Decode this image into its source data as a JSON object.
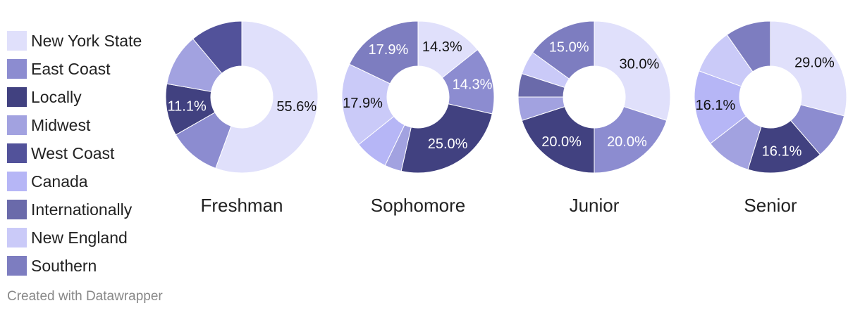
{
  "legend": {
    "items": [
      {
        "label": "New York State",
        "color": "#e0e0fb"
      },
      {
        "label": "East Coast",
        "color": "#8c8cd0"
      },
      {
        "label": "Locally",
        "color": "#414180"
      },
      {
        "label": "Midwest",
        "color": "#a2a2e0"
      },
      {
        "label": "West Coast",
        "color": "#52529a"
      },
      {
        "label": "Canada",
        "color": "#b6b6f6"
      },
      {
        "label": "Internationally",
        "color": "#6a6aaa"
      },
      {
        "label": "New England",
        "color": "#cacaf8"
      },
      {
        "label": "Southern",
        "color": "#7d7dc0"
      }
    ]
  },
  "chart_data": [
    {
      "type": "pie",
      "title": "Freshman",
      "slices": [
        {
          "category": "New York State",
          "value": 55.6,
          "label": "55.6%"
        },
        {
          "category": "East Coast",
          "value": 11.1,
          "label": ""
        },
        {
          "category": "Locally",
          "value": 11.1,
          "label": "11.1%"
        },
        {
          "category": "Midwest",
          "value": 11.1,
          "label": ""
        },
        {
          "category": "West Coast",
          "value": 11.1,
          "label": ""
        }
      ]
    },
    {
      "type": "pie",
      "title": "Sophomore",
      "slices": [
        {
          "category": "New York State",
          "value": 14.3,
          "label": "14.3%"
        },
        {
          "category": "East Coast",
          "value": 14.3,
          "label": "14.3%"
        },
        {
          "category": "Locally",
          "value": 25.0,
          "label": "25.0%"
        },
        {
          "category": "Midwest",
          "value": 3.6,
          "label": ""
        },
        {
          "category": "Canada",
          "value": 7.1,
          "label": ""
        },
        {
          "category": "New England",
          "value": 17.9,
          "label": "17.9%"
        },
        {
          "category": "Southern",
          "value": 17.9,
          "label": "17.9%"
        }
      ]
    },
    {
      "type": "pie",
      "title": "Junior",
      "slices": [
        {
          "category": "New York State",
          "value": 30.0,
          "label": "30.0%"
        },
        {
          "category": "East Coast",
          "value": 20.0,
          "label": "20.0%"
        },
        {
          "category": "Locally",
          "value": 20.0,
          "label": "20.0%"
        },
        {
          "category": "Midwest",
          "value": 5.0,
          "label": ""
        },
        {
          "category": "Internationally",
          "value": 5.0,
          "label": ""
        },
        {
          "category": "New England",
          "value": 5.0,
          "label": ""
        },
        {
          "category": "Southern",
          "value": 15.0,
          "label": "15.0%"
        }
      ]
    },
    {
      "type": "pie",
      "title": "Senior",
      "slices": [
        {
          "category": "New York State",
          "value": 29.0,
          "label": "29.0%"
        },
        {
          "category": "East Coast",
          "value": 9.7,
          "label": ""
        },
        {
          "category": "Locally",
          "value": 16.1,
          "label": "16.1%"
        },
        {
          "category": "Midwest",
          "value": 9.7,
          "label": ""
        },
        {
          "category": "Canada",
          "value": 16.1,
          "label": "16.1%"
        },
        {
          "category": "New England",
          "value": 9.7,
          "label": ""
        },
        {
          "category": "Southern",
          "value": 9.7,
          "label": ""
        }
      ]
    }
  ],
  "footer": {
    "credit": "Created with Datawrapper"
  }
}
